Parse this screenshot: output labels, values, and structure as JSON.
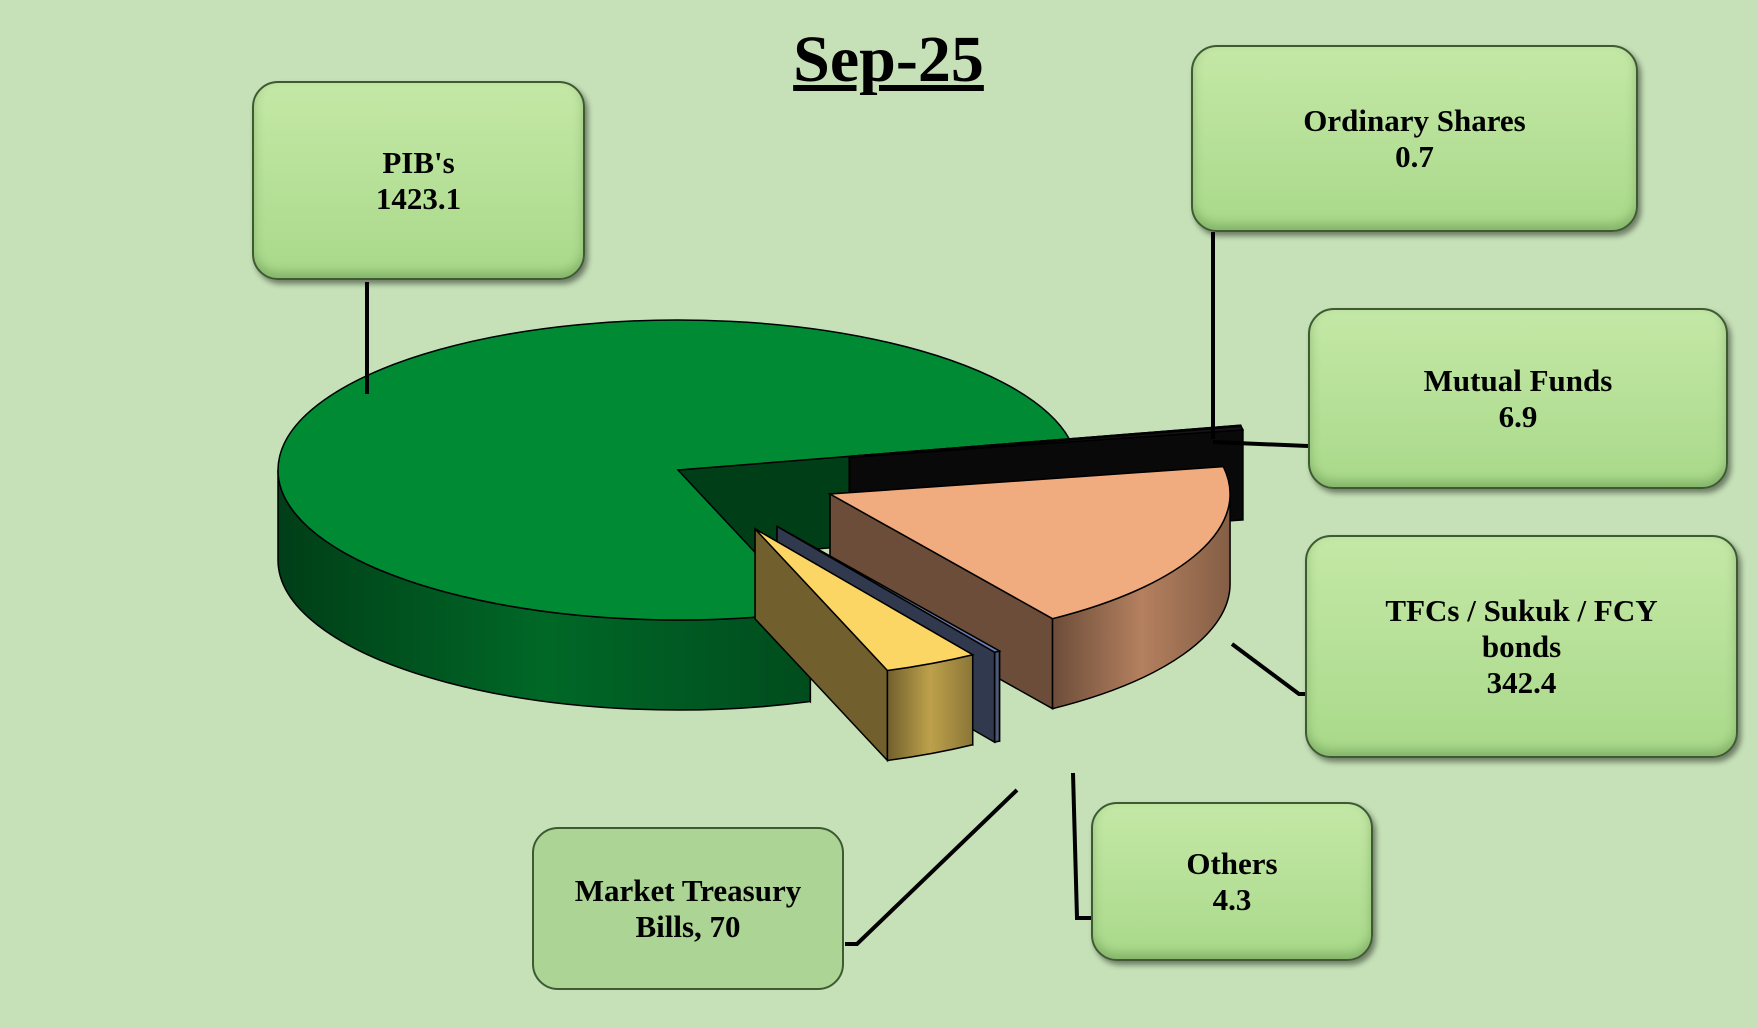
{
  "chart_data": {
    "type": "pie3d",
    "title": "Sep-25",
    "categories": [
      "Ordinary Shares",
      "Mutual Funds",
      "TFCs / Sukuk / FCY bonds",
      "Others",
      "Market Treasury Bills",
      "PIB's"
    ],
    "values": [
      0.7,
      6.9,
      342.4,
      4.3,
      70,
      1423.1
    ],
    "value_labels": [
      "0.7",
      "6.9",
      "342.4",
      "4.3",
      ", 70",
      "1423.1"
    ],
    "colors": [
      "#2a2a2a",
      "#141414",
      "#f0ab7e",
      "#6d7fae",
      "#fcd664",
      "#008a34"
    ]
  }
}
